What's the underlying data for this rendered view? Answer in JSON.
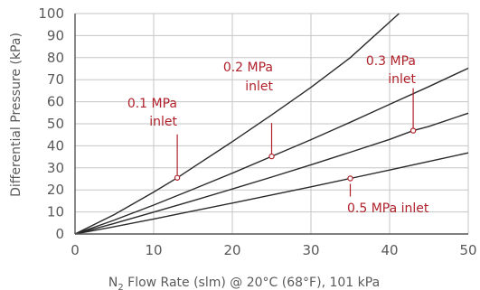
{
  "chart_data": {
    "type": "line",
    "xlabel_main": "N",
    "xlabel_sub": "2",
    "xlabel_rest": " Flow Rate (slm) @ 20°C (68°F), 101 kPa",
    "ylabel": "Differential Pressure (kPa)",
    "xlim": [
      0,
      50
    ],
    "ylim": [
      0,
      100
    ],
    "xticks": [
      0,
      10,
      20,
      30,
      40,
      50
    ],
    "yticks": [
      0,
      10,
      20,
      30,
      40,
      50,
      60,
      70,
      80,
      90,
      100
    ],
    "grid": true,
    "series": [
      {
        "name": "0.1 MPa inlet",
        "x": [
          0,
          5,
          10,
          13,
          15,
          20,
          25,
          30,
          35,
          41.2
        ],
        "y": [
          0,
          8.8,
          19.0,
          25.5,
          30.2,
          41.9,
          54.0,
          66.5,
          80.0,
          100
        ]
      },
      {
        "name": "0.2 MPa inlet",
        "x": [
          0,
          5,
          10,
          15,
          20,
          25,
          30,
          35,
          40,
          45,
          50
        ],
        "y": [
          0,
          6.3,
          13.1,
          20.3,
          27.6,
          35.2,
          42.8,
          50.7,
          58.8,
          66.9,
          75.2
        ]
      },
      {
        "name": "0.3 MPa inlet",
        "x": [
          0,
          5,
          10,
          15,
          20,
          25,
          30,
          35,
          40,
          43,
          45,
          50
        ],
        "y": [
          0,
          4.8,
          9.9,
          15.1,
          20.4,
          25.8,
          31.4,
          37.1,
          42.9,
          46.9,
          48.8,
          54.8
        ]
      },
      {
        "name": "0.5 MPa inlet",
        "x": [
          0,
          5,
          10,
          15,
          20,
          25,
          30,
          35,
          40,
          45,
          50
        ],
        "y": [
          0,
          3.3,
          6.8,
          10.4,
          14.0,
          17.7,
          21.4,
          25.2,
          29.0,
          32.9,
          36.8
        ]
      }
    ],
    "annotations": [
      {
        "lines": [
          "0.1 MPa",
          "inlet"
        ],
        "x": 13,
        "y": 25.5
      },
      {
        "lines": [
          "0.2 MPa",
          "inlet"
        ],
        "x": 25,
        "y": 35.2
      },
      {
        "lines": [
          "0.3 MPa",
          "inlet"
        ],
        "x": 43,
        "y": 46.9
      },
      {
        "lines": [
          "0.5 MPa inlet"
        ],
        "x": 35,
        "y": 25.2
      }
    ],
    "colors": {
      "curve": "#2a2a2a",
      "annotation": "#b0222b",
      "grid": "#c6c6c6",
      "text": "#5a5a5a"
    }
  }
}
